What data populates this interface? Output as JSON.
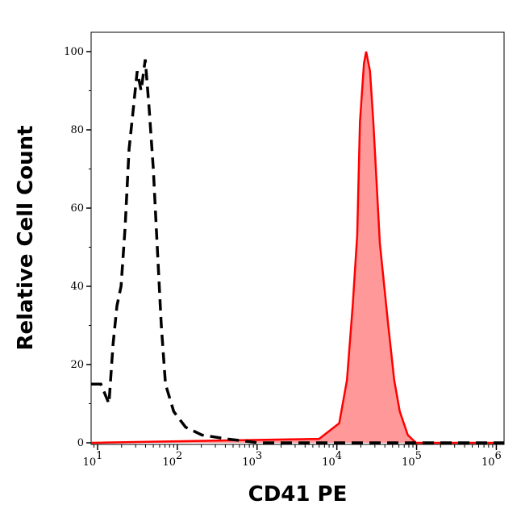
{
  "chart_data": {
    "type": "area",
    "title": "",
    "xlabel": "CD41 PE",
    "ylabel": "Relative Cell Count",
    "xscale": "log",
    "xlim": [
      8.3,
      1250000
    ],
    "ylim": [
      0,
      105
    ],
    "grid": false,
    "x_ticks": [
      {
        "base": "10",
        "exp": "1",
        "value": 10
      },
      {
        "base": "10",
        "exp": "2",
        "value": 100
      },
      {
        "base": "10",
        "exp": "3",
        "value": 1000
      },
      {
        "base": "10",
        "exp": "4",
        "value": 10000
      },
      {
        "base": "10",
        "exp": "5",
        "value": 100000
      },
      {
        "base": "10",
        "exp": "6",
        "value": 1000000
      }
    ],
    "y_ticks": [
      "0",
      "20",
      "40",
      "60",
      "80",
      "100"
    ],
    "series": [
      {
        "style": "dashed",
        "color": "#000000",
        "fill": "none",
        "x": [
          8.3,
          11,
          13.9,
          15.6,
          17.5,
          19.7,
          22.1,
          24.8,
          27.9,
          31.4,
          35.2,
          39.6,
          44.5,
          50,
          56,
          63,
          71,
          90,
          127,
          203,
          410,
          1040,
          1250000
        ],
        "y": [
          15,
          15,
          10,
          25,
          35,
          40,
          55,
          75,
          85,
          95,
          90,
          98,
          85,
          70,
          50,
          30,
          15,
          8,
          4,
          2,
          1,
          0,
          0
        ]
      },
      {
        "style": "solid",
        "color": "#ff0000",
        "fill": "#ff9999",
        "x": [
          8.3,
          6000,
          10700,
          13400,
          15800,
          18000,
          19500,
          21900,
          23300,
          26100,
          28700,
          34600,
          43600,
          52400,
          61600,
          77600,
          98000,
          1250000
        ],
        "y": [
          0,
          1,
          5,
          16,
          35,
          53,
          82,
          97,
          100,
          95,
          82,
          51,
          31,
          16,
          8,
          2,
          0,
          0
        ]
      }
    ]
  }
}
